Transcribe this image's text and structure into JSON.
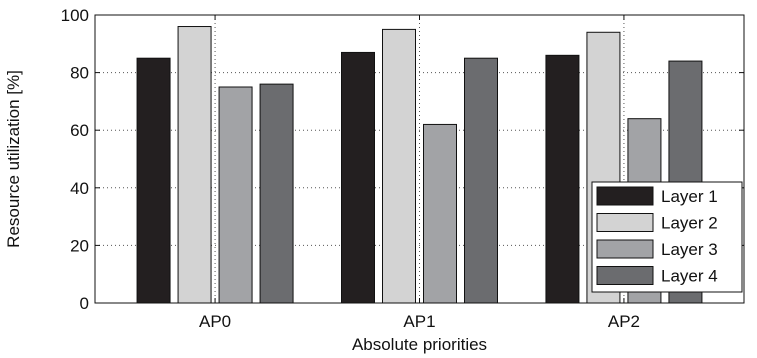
{
  "chart_data": {
    "type": "bar",
    "categories": [
      "AP0",
      "AP1",
      "AP2"
    ],
    "series": [
      {
        "name": "Layer 1",
        "values": [
          85,
          87,
          86
        ],
        "color": "#231f20"
      },
      {
        "name": "Layer 2",
        "values": [
          96,
          95,
          94
        ],
        "color": "#d3d3d3"
      },
      {
        "name": "Layer 3",
        "values": [
          75,
          62,
          64
        ],
        "color": "#a2a3a6"
      },
      {
        "name": "Layer 4",
        "values": [
          76,
          85,
          84
        ],
        "color": "#6b6c6f"
      }
    ],
    "title": "",
    "xlabel": "Absolute priorities",
    "ylabel": "Resource utilization [%]",
    "ylim": [
      0,
      100
    ],
    "yticks": [
      0,
      20,
      40,
      60,
      80,
      100
    ],
    "grid": true,
    "legend_position": "bottom-right"
  }
}
